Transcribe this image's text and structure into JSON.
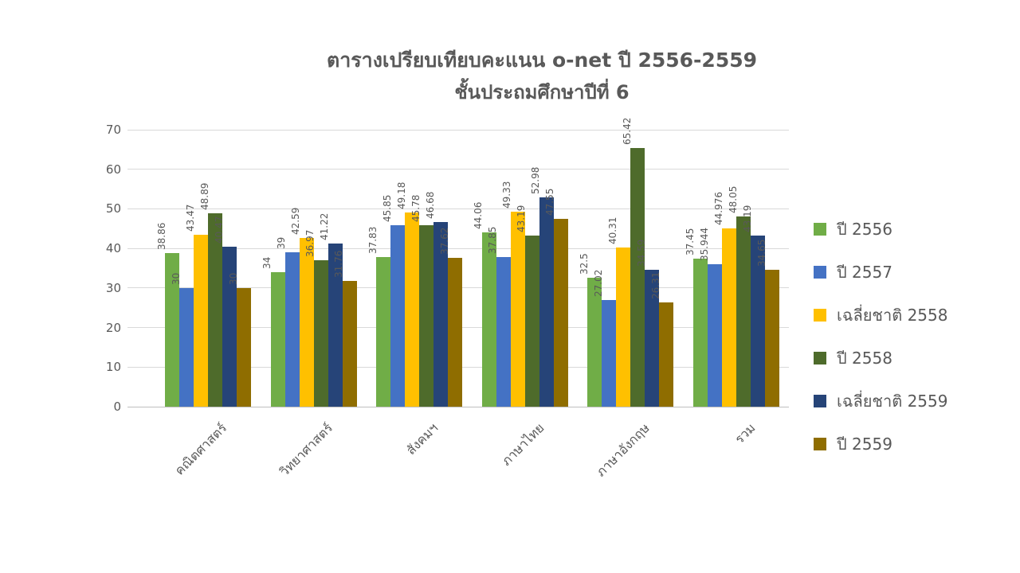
{
  "chart_data": {
    "type": "bar",
    "title": "ตารางเปรียบเทียบคะแนน o-net ปี 2556-2559",
    "subtitle": "ชั้นประถมศึกษาปีที่ 6",
    "categories": [
      "คณิตศาสตร์",
      "วิทยาศาสตร์",
      "สังคมฯ",
      "ภาษาไทย",
      "ภาษาอังกฤษ",
      "รวม"
    ],
    "series": [
      {
        "name": "ปี 2556",
        "color": "#70AD47",
        "values": [
          38.86,
          34,
          37.83,
          44.06,
          32.5,
          37.45
        ]
      },
      {
        "name": "ปี 2557",
        "color": "#4472C4",
        "values": [
          30,
          39,
          45.85,
          37.85,
          27.02,
          35.944
        ]
      },
      {
        "name": "เฉลี่ยชาติ 2558",
        "color": "#FFC000",
        "values": [
          43.47,
          42.59,
          49.18,
          49.33,
          40.31,
          44.976
        ]
      },
      {
        "name": "ปี 2558",
        "color": "#4E6B2B",
        "values": [
          48.89,
          36.97,
          45.78,
          43.19,
          65.42,
          48.05
        ]
      },
      {
        "name": "เฉลี่ยชาติ 2559",
        "color": "#264478",
        "values": [
          40.47,
          41.22,
          46.68,
          52.98,
          34.59,
          43.19
        ]
      },
      {
        "name": "ปี 2559",
        "color": "#8F6D00",
        "values": [
          30,
          31.76,
          37.62,
          47.55,
          26.31,
          34.65
        ]
      }
    ],
    "ylim": [
      0,
      70
    ],
    "yticks": [
      0,
      10,
      20,
      30,
      40,
      50,
      60,
      70
    ],
    "grid": true,
    "value_labels": true,
    "legend_position": "right",
    "text_color": "#595959",
    "grid_color": "#D9D9D9"
  }
}
